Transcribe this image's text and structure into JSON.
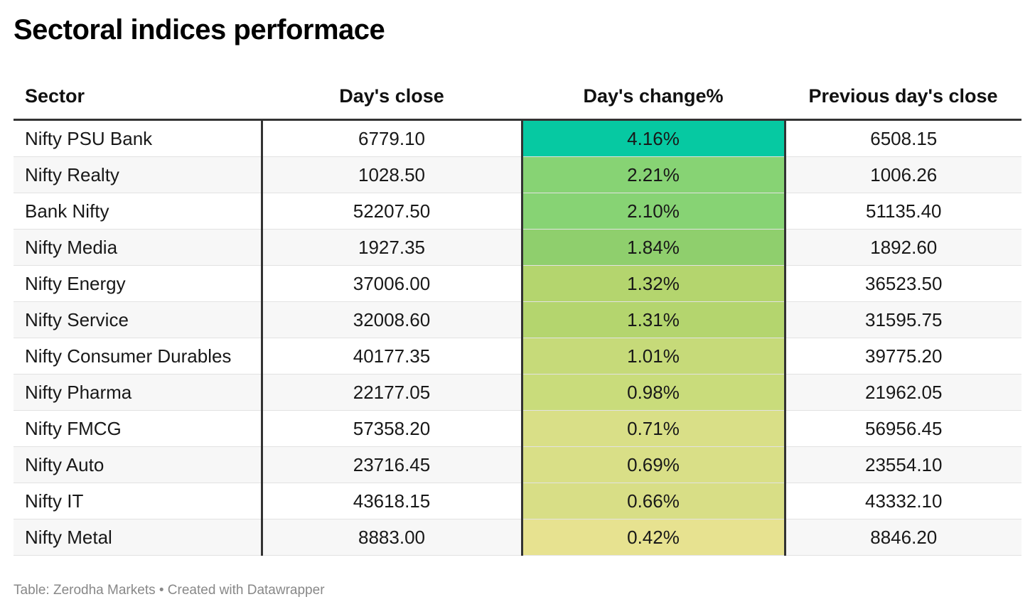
{
  "title": "Sectoral indices performace",
  "source": "Table: Zerodha Markets • Created with Datawrapper",
  "chart_data": {
    "type": "table",
    "columns": [
      "Sector",
      "Day's close",
      "Day's change%",
      "Previous day's close"
    ],
    "heatmap_column": "Day's change%",
    "heatmap_colors": {
      "4.16%": "#06c9a2",
      "2.21%": "#87d374",
      "2.10%": "#87d374",
      "1.84%": "#8fcf6d",
      "1.32%": "#b4d56e",
      "1.31%": "#b4d56e",
      "1.01%": "#c6da79",
      "0.98%": "#c9dc7b",
      "0.71%": "#d9df87",
      "0.69%": "#d9df87",
      "0.66%": "#d8de86",
      "0.42%": "#e7e290"
    },
    "rows": [
      [
        "Nifty PSU Bank",
        "6779.10",
        "4.16%",
        "6508.15"
      ],
      [
        "Nifty Realty",
        "1028.50",
        "2.21%",
        "1006.26"
      ],
      [
        "Bank Nifty",
        "52207.50",
        "2.10%",
        "51135.40"
      ],
      [
        "Nifty Media",
        "1927.35",
        "1.84%",
        "1892.60"
      ],
      [
        "Nifty Energy",
        "37006.00",
        "1.32%",
        "36523.50"
      ],
      [
        "Nifty Service",
        "32008.60",
        "1.31%",
        "31595.75"
      ],
      [
        "Nifty Consumer Durables",
        "40177.35",
        "1.01%",
        "39775.20"
      ],
      [
        "Nifty Pharma",
        "22177.05",
        "0.98%",
        "21962.05"
      ],
      [
        "Nifty FMCG",
        "57358.20",
        "0.71%",
        "56956.45"
      ],
      [
        "Nifty Auto",
        "23716.45",
        "0.69%",
        "23554.10"
      ],
      [
        "Nifty IT",
        "43618.15",
        "0.66%",
        "43332.10"
      ],
      [
        "Nifty Metal",
        "8883.00",
        "0.42%",
        "8846.20"
      ]
    ]
  }
}
